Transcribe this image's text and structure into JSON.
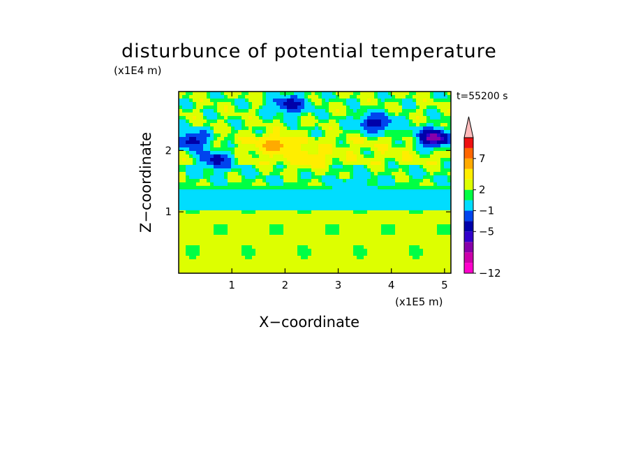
{
  "chart_data": {
    "type": "heatmap",
    "title": "disturbunce of potential temperature",
    "xlabel": "X−coordinate",
    "ylabel": "Z−coordinate",
    "x_unit": "(x1E5 m)",
    "y_unit": "(x1E4 m)",
    "time_label": "t=55200 s",
    "xlim": [
      0,
      5.12
    ],
    "ylim": [
      0,
      2.96
    ],
    "x_ticks": [
      1,
      2,
      3,
      4,
      5
    ],
    "y_ticks": [
      1,
      2
    ],
    "x_tick_labels": [
      "1",
      "2",
      "3",
      "4",
      "5"
    ],
    "y_tick_labels": [
      "1",
      "2"
    ],
    "colorbar": {
      "levels_bottom_to_top": [
        -12,
        -10,
        -8,
        -6,
        -5,
        -3,
        -1,
        1,
        2,
        4,
        6,
        7,
        9,
        11
      ],
      "colors_bottom_to_top": [
        "#ff00cc",
        "#cc00aa",
        "#8800aa",
        "#3300cc",
        "#0000aa",
        "#0044ee",
        "#00ddff",
        "#00ff44",
        "#ddff00",
        "#ffee00",
        "#ffaa00",
        "#ff6600",
        "#ee1111",
        "#ff7777",
        "#ffbbbb"
      ],
      "labeled_levels": [
        -12,
        -5,
        -1,
        2,
        7
      ],
      "labels": [
        "−12",
        "−5",
        "−1",
        "2",
        "7"
      ],
      "extend": "max"
    },
    "field_regions": [
      {
        "z_range": [
          0.0,
          0.15
        ],
        "dominant_value": 3
      },
      {
        "z_range": [
          0.15,
          1.0
        ],
        "dominant_value": 2.5
      },
      {
        "z_range": [
          1.0,
          1.35
        ],
        "dominant_value": 0
      },
      {
        "z_range": [
          1.35,
          1.75
        ],
        "dominant_value": 1.5
      },
      {
        "z_range": [
          1.75,
          2.2
        ],
        "dominant_value": 3
      },
      {
        "z_range": [
          2.2,
          2.96
        ],
        "dominant_value": 2
      }
    ],
    "features": [
      {
        "x": 0.7,
        "z": 1.85,
        "value": -4
      },
      {
        "x": 1.8,
        "z": 2.1,
        "value": 7
      },
      {
        "x": 2.4,
        "z": 1.85,
        "value": 6
      },
      {
        "x": 2.1,
        "z": 2.75,
        "value": -4
      },
      {
        "x": 3.7,
        "z": 2.45,
        "value": -4
      },
      {
        "x": 4.8,
        "z": 2.2,
        "value": -7
      },
      {
        "x": 0.25,
        "z": 2.15,
        "value": -4
      },
      {
        "x": 3.3,
        "z": 1.4,
        "value": -1
      }
    ]
  }
}
